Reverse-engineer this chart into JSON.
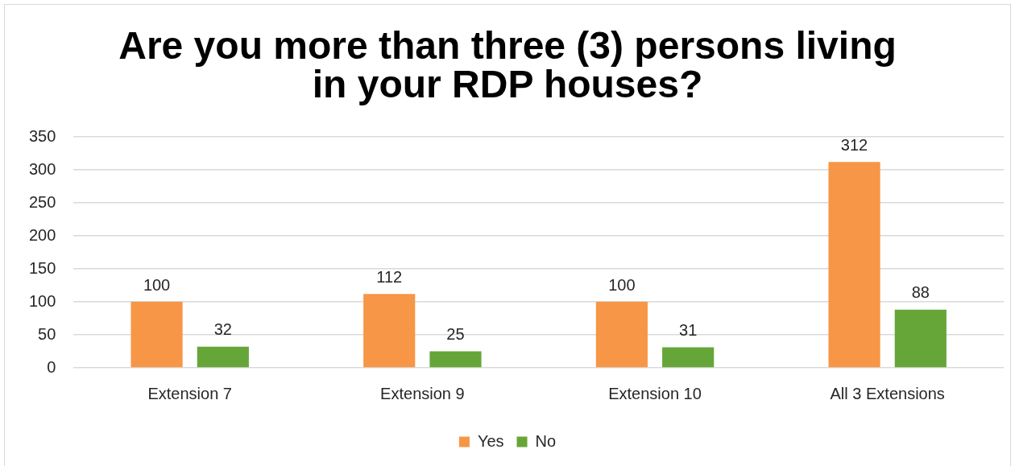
{
  "chart_data": {
    "type": "bar",
    "title": "Are you more than three (3) persons living in your RDP houses?",
    "categories": [
      "Extension 7",
      "Extension 9",
      "Extension 10",
      "All 3 Extensions"
    ],
    "series": [
      {
        "name": "Yes",
        "color": "#f79646",
        "values": [
          100,
          112,
          100,
          312
        ]
      },
      {
        "name": "No",
        "color": "#66a638",
        "values": [
          32,
          25,
          31,
          88
        ]
      }
    ],
    "ylim": [
      0,
      350
    ],
    "yticks": [
      0,
      50,
      100,
      150,
      200,
      250,
      300,
      350
    ],
    "grid": "y",
    "legend": "bottom",
    "data_labels": true
  }
}
